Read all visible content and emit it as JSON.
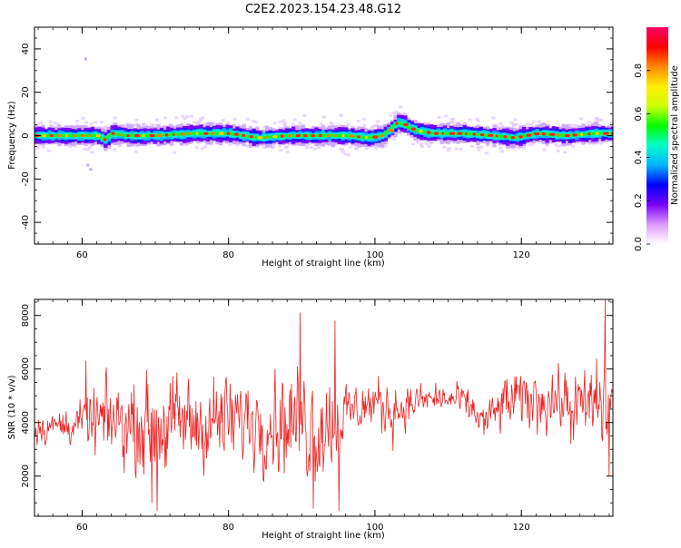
{
  "title": "C2E2.2023.154.23.48.G12",
  "colors": {
    "snr_line": "#ee2222",
    "colormap": [
      "#ffffff",
      "#dd99ff",
      "#7a00ff",
      "#0000ff",
      "#00b4ff",
      "#00ffcc",
      "#00ff00",
      "#ccff00",
      "#ffee00",
      "#ff8800",
      "#ff0000",
      "#ff0066"
    ]
  },
  "chart_data": [
    {
      "type": "heatmap",
      "title": "",
      "xlabel": "Height of straight line (km)",
      "ylabel": "Frequency (Hz)",
      "xlim": [
        53.5,
        132.5
      ],
      "ylim": [
        -50,
        50
      ],
      "xticks": [
        60,
        80,
        100,
        120
      ],
      "yticks": [
        -40,
        -20,
        0,
        20,
        40
      ],
      "colorbar": {
        "label": "Normalized spectral amplitude",
        "range": [
          0,
          1
        ],
        "ticks": [
          "0.0",
          "0.2",
          "0.4",
          "0.6",
          "0.8"
        ]
      },
      "ridge": {
        "description_of_values": "peak frequency (Hz) vs height (km)",
        "x": [
          54,
          58,
          62,
          63,
          64,
          66,
          70,
          75,
          80,
          84,
          88,
          92,
          96,
          99,
          101,
          102,
          103,
          104,
          105,
          106,
          108,
          112,
          116,
          119,
          122,
          126,
          130,
          132
        ],
        "y": [
          0,
          0,
          0,
          -2,
          1,
          0,
          0,
          1,
          1,
          -1,
          0,
          0,
          0,
          -1,
          0,
          3,
          6,
          5,
          3,
          2,
          1,
          1,
          0,
          -1,
          1,
          0,
          1,
          1
        ]
      }
    },
    {
      "type": "line",
      "title": "",
      "xlabel": "Height of straight line (km)",
      "ylabel": "SNR (10 * v/v)",
      "xlim": [
        53.5,
        132.5
      ],
      "ylim": [
        500,
        8600
      ],
      "xticks": [
        60,
        80,
        100,
        120
      ],
      "yticks": [
        2000,
        4000,
        6000,
        8000
      ],
      "envelope": {
        "description_of_values": "approximate mean and spread of the SNR trace vs height",
        "x": [
          54,
          58,
          60,
          62,
          64,
          66,
          70,
          74,
          78,
          82,
          86,
          90,
          92,
          94,
          96,
          98,
          100,
          102,
          104,
          106,
          108,
          112,
          115,
          118,
          120,
          124,
          128,
          130,
          132
        ],
        "mean": [
          3800,
          3900,
          4000,
          4000,
          4100,
          4000,
          3800,
          4000,
          4000,
          4100,
          4100,
          4000,
          3900,
          4000,
          4300,
          4600,
          4700,
          4500,
          4600,
          4800,
          4900,
          4800,
          4000,
          4800,
          4800,
          4900,
          4500,
          4700,
          4600
        ],
        "spread": [
          500,
          550,
          700,
          1200,
          1200,
          1300,
          1600,
          1500,
          1500,
          1400,
          1600,
          1800,
          1900,
          1700,
          1100,
          800,
          900,
          1000,
          700,
          500,
          500,
          500,
          600,
          900,
          1000,
          1000,
          1200,
          1400,
          1800
        ]
      },
      "peaks": {
        "x": [
          60.5,
          69.5,
          70.2,
          89.8,
          91.6,
          94.5,
          95.1,
          131.4,
          132.0
        ],
        "y": [
          6300,
          1000,
          700,
          8100,
          800,
          7800,
          700,
          8600,
          2000
        ]
      }
    }
  ]
}
